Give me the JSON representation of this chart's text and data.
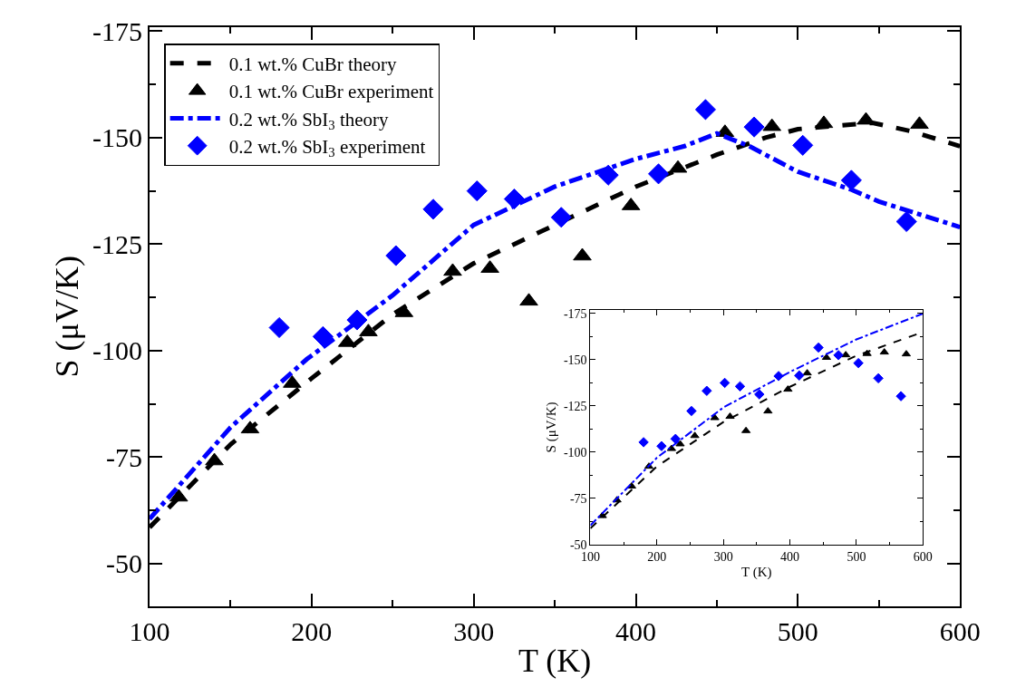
{
  "chart_data": [
    {
      "type": "line",
      "xlabel": "T (K)",
      "ylabel": "S (μV/K)",
      "xlim": [
        100,
        600
      ],
      "ylim": [
        -40,
        -176
      ],
      "xticks": [
        100,
        {
          "value": 150,
          "label": null
        },
        200,
        {
          "value": 250,
          "label": null
        },
        300,
        {
          "value": 350,
          "label": null
        },
        400,
        {
          "value": 450,
          "label": null
        },
        500,
        {
          "value": 550,
          "label": null
        },
        600
      ],
      "yticks": [
        -50,
        {
          "value": -62.5,
          "label": null
        },
        -75,
        {
          "value": -87.5,
          "label": null
        },
        -100,
        {
          "value": -112.5,
          "label": null
        },
        -125,
        {
          "value": -137.5,
          "label": null
        },
        -150,
        {
          "value": -162.5,
          "label": null
        },
        -175
      ],
      "legend": "top left",
      "series": [
        {
          "name": "0.1 wt.% CuBr theory",
          "type": "line",
          "color": "#000000",
          "line_style": "dashed",
          "x": [
            100,
            150,
            200,
            250,
            300,
            400,
            450,
            480,
            500,
            546,
            570,
            600
          ],
          "values": [
            -58.5,
            -78,
            -93.5,
            -108.5,
            -120.5,
            -138.5,
            -146,
            -150,
            -152,
            -153.5,
            -151.5,
            -148
          ]
        },
        {
          "name": "0.1 wt.% CuBr experiment",
          "type": "scatter",
          "color": "#000000",
          "marker": "triangle",
          "x": [
            118,
            140,
            162,
            188,
            222,
            235,
            257,
            287,
            310,
            334,
            367,
            397,
            426,
            455,
            484,
            516,
            542,
            575
          ],
          "values": [
            -65.6,
            -74.1,
            -81.6,
            -92.3,
            -101.9,
            -104.4,
            -108.9,
            -118.6,
            -119.3,
            -111.6,
            -122.2,
            -134,
            -142.8,
            -151.2,
            -152.6,
            -153.3,
            -154.1,
            -153.1
          ]
        },
        {
          "name": "0.2 wt.% SbI$_{3}$ theory",
          "type": "line",
          "color": "#0000ff",
          "line_style": "dashdot",
          "x": [
            100,
            150,
            197,
            250,
            300,
            350,
            400,
            430,
            450,
            470,
            500,
            533,
            550,
            600
          ],
          "values": [
            -60.5,
            -82,
            -98,
            -113,
            -129.5,
            -138.5,
            -145,
            -148,
            -151,
            -148,
            -142,
            -137.8,
            -135,
            -129
          ]
        },
        {
          "name": "0.2 wt.% SbI$_{3}$ experiment",
          "type": "scatter",
          "color": "#0000ff",
          "marker": "diamond",
          "x": [
            180,
            207,
            228,
            252,
            275,
            302,
            325,
            354,
            383,
            414,
            443,
            473,
            503,
            533,
            567
          ],
          "values": [
            -105.4,
            -103.3,
            -107.2,
            -122.3,
            -133.2,
            -137.5,
            -135.6,
            -131.3,
            -141.2,
            -141.5,
            -156.6,
            -152.5,
            -148.2,
            -140,
            -130.3
          ]
        }
      ]
    },
    {
      "type": "line",
      "xlabel": "T (K)",
      "ylabel": "S (μV/K)",
      "xlim": [
        100,
        600
      ],
      "ylim": [
        -50,
        -177
      ],
      "xticks": [
        100,
        {
          "value": 150,
          "label": null
        },
        200,
        {
          "value": 250,
          "label": null
        },
        300,
        {
          "value": 350,
          "label": null
        },
        400,
        {
          "value": 450,
          "label": null
        },
        500,
        {
          "value": 550,
          "label": null
        },
        600
      ],
      "yticks": [
        -50,
        {
          "value": -62.5,
          "label": null
        },
        -75,
        {
          "value": -87.5,
          "label": null
        },
        -100,
        {
          "value": -112.5,
          "label": null
        },
        -125,
        {
          "value": -137.5,
          "label": null
        },
        -150,
        {
          "value": -162.5,
          "label": null
        },
        -175
      ],
      "series": [
        {
          "type": "line",
          "color": "#000000",
          "line_style": "dashed",
          "x": [
            100,
            200,
            300,
            400,
            500,
            600
          ],
          "values": [
            -58.8,
            -92.3,
            -116.3,
            -135.4,
            -152.2,
            -165
          ]
        },
        {
          "type": "scatter",
          "color": "#000000",
          "marker": "triangle",
          "x": [
            118,
            140,
            162,
            188,
            222,
            235,
            257,
            287,
            310,
            334,
            367,
            397,
            426,
            455,
            484,
            516,
            542,
            575
          ],
          "values": [
            -65.6,
            -74.1,
            -81.6,
            -92.3,
            -101.9,
            -104.4,
            -108.9,
            -118.6,
            -119.3,
            -111.6,
            -122.2,
            -134,
            -142.8,
            -151.2,
            -152.6,
            -153.3,
            -154.1,
            -153.1
          ]
        },
        {
          "type": "line",
          "color": "#0000ff",
          "line_style": "dashdot",
          "x": [
            100,
            200,
            300,
            400,
            500,
            600
          ],
          "values": [
            -60.4,
            -97,
            -124.2,
            -143.4,
            -161,
            -175
          ]
        },
        {
          "type": "scatter",
          "color": "#0000ff",
          "marker": "diamond",
          "x": [
            180,
            207,
            228,
            252,
            275,
            302,
            325,
            354,
            383,
            414,
            443,
            473,
            503,
            533,
            567
          ],
          "values": [
            -105.4,
            -103.3,
            -107.2,
            -122.3,
            -133.2,
            -137.5,
            -135.6,
            -131.3,
            -141.2,
            -141.5,
            -156.6,
            -152.5,
            -148.2,
            -140,
            -130.3
          ]
        }
      ]
    }
  ]
}
